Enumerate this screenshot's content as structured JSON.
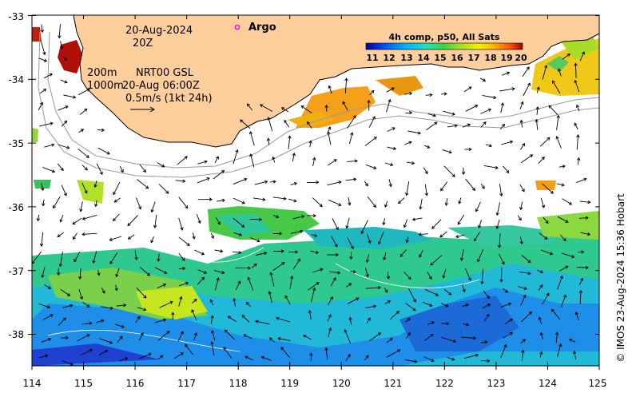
{
  "map": {
    "date_label": "20-Aug-2024",
    "time_label": "20Z",
    "contour_label_1": "200m",
    "contour_label_2": "1000m",
    "product_label": "NRT00 GSL",
    "product_time": "20-Aug 06:00Z",
    "scale_label": "0.5m/s (1kt 24h)",
    "argo_label": "Argo",
    "credit": "© IMOS 23-Aug-2024 15:36 Hobart",
    "x_ticks": [
      "114",
      "115",
      "116",
      "117",
      "118",
      "119",
      "120",
      "121",
      "122",
      "123",
      "124",
      "125"
    ],
    "y_ticks": [
      "-33",
      "-34",
      "-35",
      "-36",
      "-37",
      "-38"
    ],
    "lon_range": [
      114,
      125
    ],
    "lat_range": [
      -38.5,
      -33
    ],
    "land_color": "#FECE9C",
    "argo_color": "#FF00FF"
  },
  "colorbar": {
    "title": "4h comp, p50, All Sats",
    "labels": [
      "11",
      "12",
      "13",
      "14",
      "15",
      "16",
      "17",
      "18",
      "19",
      "20"
    ],
    "range": [
      11,
      20
    ],
    "colors": [
      "#00008f",
      "#0050ff",
      "#00b0ff",
      "#20e0c0",
      "#40d040",
      "#a0e020",
      "#f0f000",
      "#ffb000",
      "#ff5000",
      "#a00000"
    ]
  }
}
